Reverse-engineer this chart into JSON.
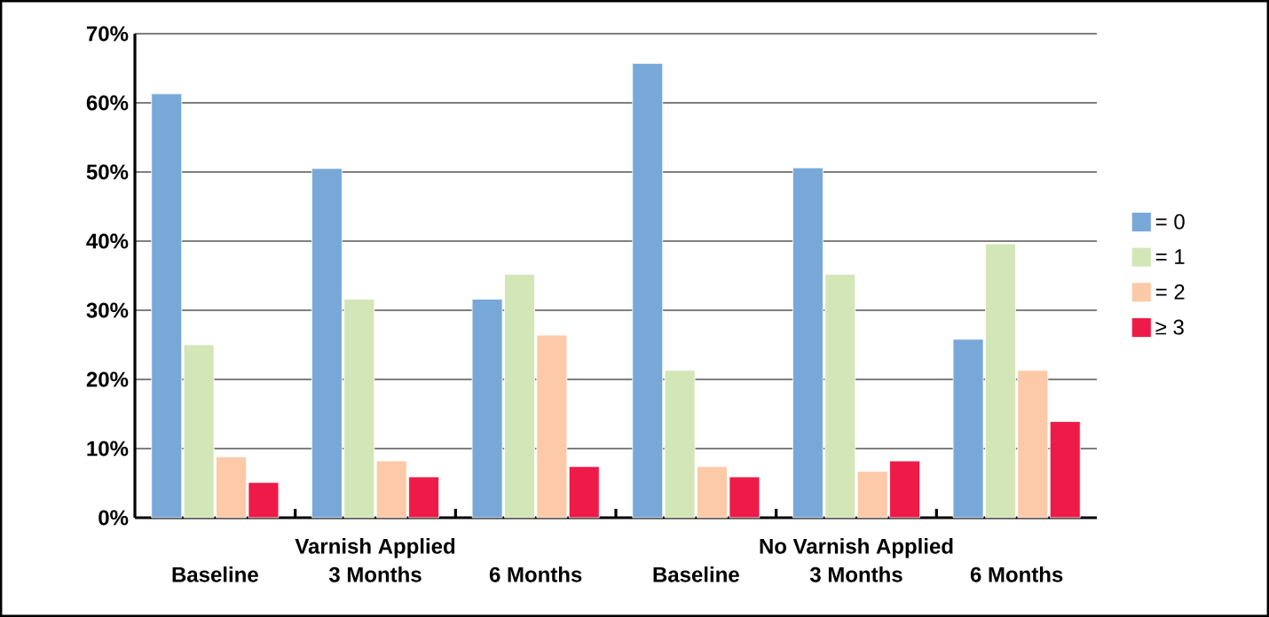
{
  "chart_data": {
    "type": "bar",
    "categories": [
      "Baseline",
      "3 Months",
      "6 Months",
      "Baseline",
      "3 Months",
      "6 Months"
    ],
    "series": [
      {
        "name": "= 0",
        "color": "#78a8d8",
        "values": [
          61.3,
          50.5,
          31.6,
          65.7,
          50.6,
          25.8
        ]
      },
      {
        "name": "= 1",
        "color": "#d3e6b7",
        "values": [
          25.0,
          31.6,
          35.2,
          21.3,
          35.2,
          39.6
        ]
      },
      {
        "name": "= 2",
        "color": "#fccaa8",
        "values": [
          8.8,
          8.2,
          26.4,
          7.4,
          6.7,
          21.3
        ]
      },
      {
        "name": "≥ 3",
        "color": "#ee1a48",
        "values": [
          5.1,
          5.9,
          7.4,
          5.9,
          8.2,
          13.9
        ]
      }
    ],
    "annotations": [
      "Varnish Applied",
      "No Varnish Applied"
    ],
    "ylim": [
      0,
      70
    ],
    "yticks": [
      {
        "value": 0,
        "label": "0%"
      },
      {
        "value": 10,
        "label": "10%"
      },
      {
        "value": 20,
        "label": "20%"
      },
      {
        "value": 30,
        "label": "30%"
      },
      {
        "value": 40,
        "label": "40%"
      },
      {
        "value": 50,
        "label": "50%"
      },
      {
        "value": 60,
        "label": "60%"
      },
      {
        "value": 70,
        "label": "70%"
      }
    ],
    "grid": "y",
    "legend": "right"
  }
}
